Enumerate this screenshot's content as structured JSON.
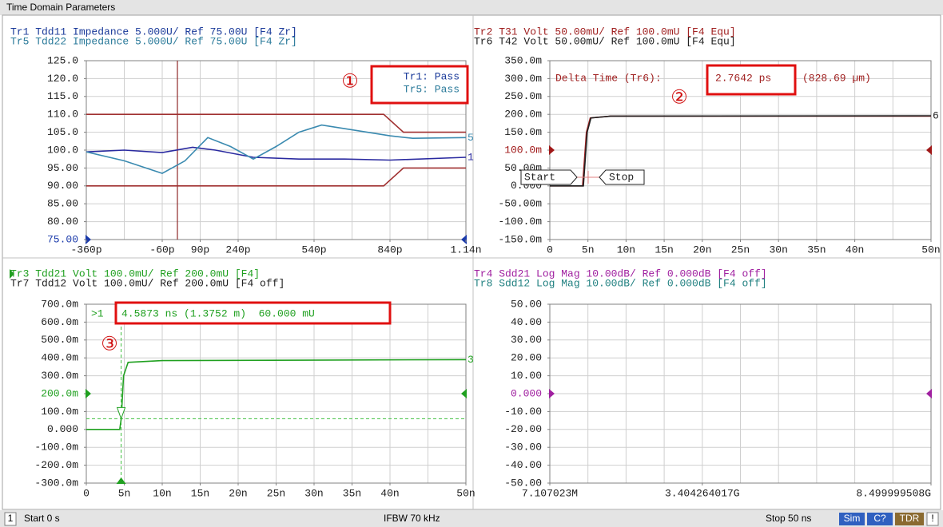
{
  "title": "Time Domain Parameters",
  "chart_data": [
    {
      "type": "line",
      "headers": [
        "Tr1 Tdd11 Impedance 5.000U/ Ref 75.00U [F4 Zr]",
        "Tr5 Tdd22 Impedance 5.000U/ Ref 75.00U [F4 Zr]"
      ],
      "header_colors": [
        "#1a3a9a",
        "#2a7a9a"
      ],
      "ylim": [
        75,
        125
      ],
      "yticks": [
        {
          "value": 125,
          "label": "125.0"
        },
        {
          "value": 120,
          "label": "120.0"
        },
        {
          "value": 115,
          "label": "115.0"
        },
        {
          "value": 110,
          "label": "110.0"
        },
        {
          "value": 105,
          "label": "105.0"
        },
        {
          "value": 100,
          "label": "100.0"
        },
        {
          "value": 95,
          "label": "95.00"
        },
        {
          "value": 90,
          "label": "90.00"
        },
        {
          "value": 85,
          "label": "85.00"
        },
        {
          "value": 80,
          "label": "80.00"
        },
        {
          "value": 75,
          "label": "75.00"
        }
      ],
      "ref_tick": 10,
      "ref_color": "#1a3aaa",
      "xlim": [
        -360,
        1140
      ],
      "xticks": [
        {
          "value": -360,
          "label": "-360p"
        },
        {
          "value": -60,
          "label": "-60p"
        },
        {
          "value": 90,
          "label": "90p"
        },
        {
          "value": 240,
          "label": "240p"
        },
        {
          "value": 540,
          "label": "540p"
        },
        {
          "value": 840,
          "label": "840p"
        },
        {
          "value": 1140,
          "label": "1.14n"
        }
      ],
      "divisions": 10,
      "cursor_x": 0,
      "cursor_color": "#902828",
      "series": [
        {
          "color": "#2a2aa0",
          "end_label": "1",
          "x": [
            -360,
            -210,
            -60,
            60,
            150,
            300,
            480,
            660,
            840,
            1140
          ],
          "values": [
            99.5,
            100,
            99.3,
            100.8,
            100,
            98,
            97.5,
            97.5,
            97.2,
            98
          ]
        },
        {
          "color": "#3a8ab0",
          "end_label": "5",
          "x": [
            -360,
            -210,
            -60,
            30,
            120,
            210,
            300,
            390,
            480,
            570,
            660,
            750,
            840,
            930,
            1140
          ],
          "values": [
            99.5,
            97,
            93.5,
            97,
            103.5,
            101,
            97.5,
            101,
            105,
            107,
            106,
            105,
            104,
            103.3,
            103.5
          ]
        },
        {
          "color": "#a03030",
          "x": [
            -360,
            815,
            893,
            1140
          ],
          "values": [
            110,
            110,
            105,
            105
          ]
        },
        {
          "color": "#a03030",
          "x": [
            -360,
            815,
            893,
            1140
          ],
          "values": [
            90,
            90,
            95,
            95
          ]
        }
      ],
      "pass": [
        "Tr1: Pass",
        "Tr5: Pass"
      ],
      "callout": "①"
    },
    {
      "type": "line",
      "headers": [
        "Tr2 T31 Volt 50.00mU/ Ref 100.0mU [F4 Equ]",
        "Tr6 T42 Volt 50.00mU/ Ref 100.0mU [F4 Equ]"
      ],
      "header_colors": [
        "#a02020",
        "#202020"
      ],
      "ylim": [
        -150,
        350
      ],
      "yticks": [
        {
          "value": 350,
          "label": "350.0m"
        },
        {
          "value": 300,
          "label": "300.0m"
        },
        {
          "value": 250,
          "label": "250.0m"
        },
        {
          "value": 200,
          "label": "200.0m"
        },
        {
          "value": 150,
          "label": "150.0m"
        },
        {
          "value": 100,
          "label": "100.0m"
        },
        {
          "value": 50,
          "label": "50.00m"
        },
        {
          "value": 0,
          "label": "0.000"
        },
        {
          "value": -50,
          "label": "-50.00m"
        },
        {
          "value": -100,
          "label": "-100.0m"
        },
        {
          "value": -150,
          "label": "-150.0m"
        }
      ],
      "ref_tick": 5,
      "ref_color": "#a01818",
      "xlim": [
        0,
        50
      ],
      "xticks": [
        0,
        {
          "value": 5,
          "label": "5n"
        },
        {
          "value": 10,
          "label": "10n"
        },
        {
          "value": 15,
          "label": "15n"
        },
        {
          "value": 20,
          "label": "20n"
        },
        {
          "value": 25,
          "label": "25n"
        },
        {
          "value": 30,
          "label": "30n"
        },
        {
          "value": 35,
          "label": "35n"
        },
        {
          "value": 40,
          "label": "40n"
        },
        {
          "value": 50,
          "label": "50n"
        }
      ],
      "divisions": 10,
      "series": [
        {
          "color": "#a02020",
          "x": [
            0,
            4.3,
            4.8,
            5.3,
            8,
            50
          ],
          "values": [
            0,
            0,
            150,
            190,
            195,
            195
          ]
        },
        {
          "color": "#202020",
          "end_label": "6",
          "x": [
            0,
            4.4,
            4.9,
            5.4,
            8,
            50
          ],
          "values": [
            0,
            0,
            150,
            190,
            195,
            196
          ]
        }
      ],
      "delta_label": "Delta Time (Tr6):",
      "delta_value": "2.7642 ps",
      "delta_length": "(828.69 µm)",
      "start": "Start",
      "stop": "Stop",
      "callout": "②"
    },
    {
      "type": "line",
      "headers": [
        "Tr3 Tdd21 Volt 100.0mU/ Ref 200.0mU [F4]",
        "Tr7 Tdd12 Volt 100.0mU/ Ref 200.0mU [F4 off]"
      ],
      "header_colors": [
        "#20a020",
        "#202020"
      ],
      "ylim": [
        -300,
        700
      ],
      "yticks": [
        {
          "value": 700,
          "label": "700.0m"
        },
        {
          "value": 600,
          "label": "600.0m"
        },
        {
          "value": 500,
          "label": "500.0m"
        },
        {
          "value": 400,
          "label": "400.0m"
        },
        {
          "value": 300,
          "label": "300.0m"
        },
        {
          "value": 200,
          "label": "200.0m"
        },
        {
          "value": 100,
          "label": "100.0m"
        },
        {
          "value": 0,
          "label": "0.000"
        },
        {
          "value": -100,
          "label": "-100.0m"
        },
        {
          "value": -200,
          "label": "-200.0m"
        },
        {
          "value": -300,
          "label": "-300.0m"
        }
      ],
      "ref_tick": 5,
      "ref_color": "#20a020",
      "xlim": [
        0,
        50
      ],
      "xticks": [
        0,
        {
          "value": 5,
          "label": "5n"
        },
        {
          "value": 10,
          "label": "10n"
        },
        {
          "value": 15,
          "label": "15n"
        },
        {
          "value": 20,
          "label": "20n"
        },
        {
          "value": 25,
          "label": "25n"
        },
        {
          "value": 30,
          "label": "30n"
        },
        {
          "value": 35,
          "label": "35n"
        },
        {
          "value": 40,
          "label": "40n"
        },
        {
          "value": 50,
          "label": "50n"
        }
      ],
      "divisions": 10,
      "series": [
        {
          "color": "#20a020",
          "end_label": "3",
          "x": [
            0,
            4.4,
            4.6,
            4.9,
            5.5,
            10,
            50
          ],
          "values": [
            0,
            0,
            60,
            300,
            375,
            385,
            390
          ]
        }
      ],
      "marker": {
        "x": 4.5873,
        "y": 60
      },
      "marker_id": ">1",
      "marker_readout": "4.5873 ns (1.3752 m)  60.000 mU",
      "callout": "③"
    },
    {
      "type": "line",
      "headers": [
        "Tr4 Sdd21 Log Mag 10.00dB/ Ref 0.000dB [F4 off]",
        "Tr8 Sdd12 Log Mag 10.00dB/ Ref 0.000dB [F4 off]"
      ],
      "header_colors": [
        "#a020a0",
        "#208080"
      ],
      "ylim": [
        -50,
        50
      ],
      "yticks": [
        {
          "value": 50,
          "label": "50.00"
        },
        {
          "value": 40,
          "label": "40.00"
        },
        {
          "value": 30,
          "label": "30.00"
        },
        {
          "value": 20,
          "label": "20.00"
        },
        {
          "value": 10,
          "label": "10.00"
        },
        {
          "value": 0,
          "label": "0.000"
        },
        {
          "value": -10,
          "label": "-10.00"
        },
        {
          "value": -20,
          "label": "-20.00"
        },
        {
          "value": -30,
          "label": "-30.00"
        },
        {
          "value": -40,
          "label": "-40.00"
        },
        {
          "value": -50,
          "label": "-50.00"
        }
      ],
      "ref_tick": 5,
      "ref_color": "#a020a0",
      "xlim": [
        7107023,
        8499999508
      ],
      "xticks": [
        {
          "value": 7107023,
          "label": "7.107023M"
        },
        {
          "value": 3404264017,
          "label": "3.404264017G"
        },
        {
          "value": 8499999508,
          "label": "8.499999508G"
        }
      ],
      "divisions": 10,
      "series": []
    }
  ],
  "status": {
    "channel": "1",
    "start": "Start 0 s",
    "ifbw": "IFBW 70 kHz",
    "stop": "Stop 50 ns",
    "sim": "Sim",
    "cal": "C?",
    "tdr": "TDR",
    "warn": "!"
  }
}
